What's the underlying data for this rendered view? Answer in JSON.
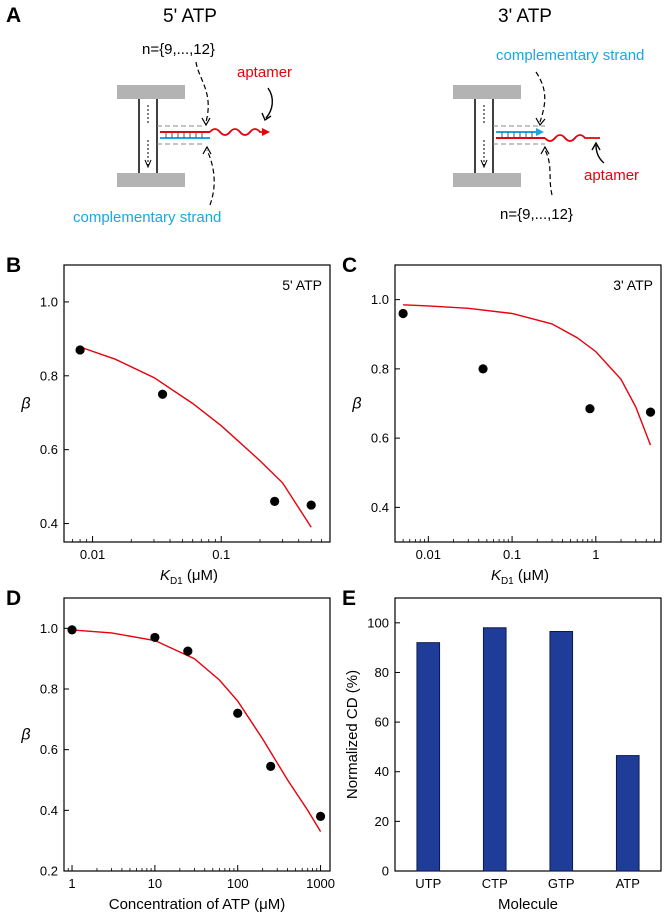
{
  "panel_letters": {
    "a": "A",
    "b": "B",
    "c": "C",
    "d": "D",
    "e": "E"
  },
  "schematic": {
    "left_title": "5' ATP",
    "right_title": "3' ATP",
    "n_label_left": "n={9,...,12}",
    "n_label_right": "n={9,...,12}",
    "aptamer_left": "aptamer",
    "aptamer_right": "aptamer",
    "complementary_left": "complementary strand",
    "complementary_right": "complementary strand",
    "colors": {
      "aptamer": "#e8000b",
      "complementary": "#1aa6e4",
      "plate": "#b3b3b3"
    }
  },
  "colors": {
    "fit": "#e8000b",
    "point": "#000000",
    "bar": "#1f3c99",
    "bar_edge": "#0c1a4a"
  },
  "chart_data": [
    {
      "id": "B",
      "type": "scatter",
      "xscale": "log",
      "xlim": [
        0.006,
        0.7
      ],
      "ylim": [
        0.35,
        1.1
      ],
      "xticks": [
        0.01,
        0.1
      ],
      "xtick_labels": [
        "0.01",
        "0.1"
      ],
      "yticks": [
        0.4,
        0.6,
        0.8,
        1.0
      ],
      "ytick_labels": [
        "0.4",
        "0.6",
        "0.8",
        "1.0"
      ],
      "ylabel": "β",
      "xlabel_main": "K",
      "xlabel_sub": "D1",
      "xlabel_unit": " (μM)",
      "legend_label": "5' ATP",
      "points": [
        [
          0.008,
          0.87
        ],
        [
          0.035,
          0.75
        ],
        [
          0.26,
          0.46
        ],
        [
          0.5,
          0.45
        ]
      ],
      "fit": [
        [
          0.008,
          0.878
        ],
        [
          0.015,
          0.845
        ],
        [
          0.03,
          0.795
        ],
        [
          0.06,
          0.725
        ],
        [
          0.1,
          0.665
        ],
        [
          0.2,
          0.57
        ],
        [
          0.3,
          0.51
        ],
        [
          0.5,
          0.39
        ]
      ]
    },
    {
      "id": "C",
      "type": "scatter",
      "xscale": "log",
      "xlim": [
        0.004,
        6
      ],
      "ylim": [
        0.3,
        1.1
      ],
      "xticks": [
        0.01,
        0.1,
        1
      ],
      "xtick_labels": [
        "0.01",
        "0.1",
        "1"
      ],
      "yticks": [
        0.4,
        0.6,
        0.8,
        1.0
      ],
      "ytick_labels": [
        "0.4",
        "0.6",
        "0.8",
        "1.0"
      ],
      "ylabel": "β",
      "xlabel_main": "K",
      "xlabel_sub": "D1",
      "xlabel_unit": " (μM)",
      "legend_label": "3' ATP",
      "points": [
        [
          0.005,
          0.96
        ],
        [
          0.045,
          0.8
        ],
        [
          0.85,
          0.685
        ],
        [
          4.5,
          0.675
        ]
      ],
      "fit": [
        [
          0.005,
          0.985
        ],
        [
          0.01,
          0.982
        ],
        [
          0.03,
          0.975
        ],
        [
          0.1,
          0.96
        ],
        [
          0.3,
          0.93
        ],
        [
          0.6,
          0.89
        ],
        [
          1,
          0.85
        ],
        [
          2,
          0.77
        ],
        [
          3,
          0.69
        ],
        [
          4.5,
          0.58
        ]
      ]
    },
    {
      "id": "D",
      "type": "scatter",
      "xscale": "log",
      "xlim": [
        0.8,
        1300
      ],
      "ylim": [
        0.2,
        1.1
      ],
      "xticks": [
        1,
        10,
        100,
        1000
      ],
      "xtick_labels": [
        "1",
        "10",
        "100",
        "1000"
      ],
      "yticks": [
        0.2,
        0.4,
        0.6,
        0.8,
        1.0
      ],
      "ytick_labels": [
        "0.2",
        "0.4",
        "0.6",
        "0.8",
        "1.0"
      ],
      "ylabel": "β",
      "xlabel": "Concentration of ATP (μM)",
      "points": [
        [
          1,
          0.995
        ],
        [
          10,
          0.97
        ],
        [
          25,
          0.925
        ],
        [
          100,
          0.72
        ],
        [
          250,
          0.545
        ],
        [
          1000,
          0.38
        ]
      ],
      "fit": [
        [
          1,
          0.995
        ],
        [
          3,
          0.985
        ],
        [
          10,
          0.96
        ],
        [
          30,
          0.9
        ],
        [
          60,
          0.83
        ],
        [
          100,
          0.76
        ],
        [
          200,
          0.635
        ],
        [
          400,
          0.5
        ],
        [
          700,
          0.4
        ],
        [
          1000,
          0.33
        ]
      ]
    },
    {
      "id": "E",
      "type": "bar",
      "categories": [
        "UTP",
        "CTP",
        "GTP",
        "ATP"
      ],
      "values": [
        92,
        98,
        96.5,
        46.5
      ],
      "ylim": [
        0,
        110
      ],
      "yticks": [
        0,
        20,
        40,
        60,
        80,
        100
      ],
      "ytick_labels": [
        "0",
        "20",
        "40",
        "60",
        "80",
        "100"
      ],
      "ylabel": "Normalized CD (%)",
      "xlabel": "Molecule"
    }
  ]
}
